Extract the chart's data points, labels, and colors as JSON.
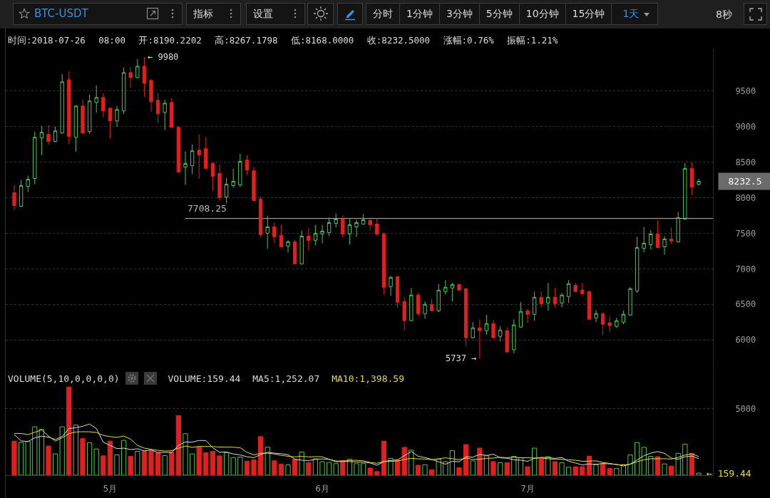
{
  "chart_data": [
    {
      "type": "candlestick",
      "title": "BTC-USDT",
      "subtitle": "时间:2018-07-26 08:00 开:8190.2202 高:8267.1798 低:8168.0000 收:8232.5000 涨幅:0.76% 振幅:1.21%",
      "x": [
        "2018-04-17",
        "2018-04-18",
        "2018-04-19",
        "2018-04-20",
        "2018-04-21",
        "2018-04-22",
        "2018-04-23",
        "2018-04-24",
        "2018-04-25",
        "2018-04-26",
        "2018-04-27",
        "2018-04-28",
        "2018-04-29",
        "2018-04-30",
        "2018-05-01",
        "2018-05-02",
        "2018-05-03",
        "2018-05-04",
        "2018-05-05",
        "2018-05-06",
        "2018-05-07",
        "2018-05-08",
        "2018-05-09",
        "2018-05-10",
        "2018-05-11",
        "2018-05-12",
        "2018-05-13",
        "2018-05-14",
        "2018-05-15",
        "2018-05-16",
        "2018-05-17",
        "2018-05-18",
        "2018-05-19",
        "2018-05-20",
        "2018-05-21",
        "2018-05-22",
        "2018-05-23",
        "2018-05-24",
        "2018-05-25",
        "2018-05-26",
        "2018-05-27",
        "2018-05-28",
        "2018-05-29",
        "2018-05-30",
        "2018-05-31",
        "2018-06-01",
        "2018-06-02",
        "2018-06-03",
        "2018-06-04",
        "2018-06-05",
        "2018-06-06",
        "2018-06-07",
        "2018-06-08",
        "2018-06-09",
        "2018-06-10",
        "2018-06-11",
        "2018-06-12",
        "2018-06-13",
        "2018-06-14",
        "2018-06-15",
        "2018-06-16",
        "2018-06-17",
        "2018-06-18",
        "2018-06-19",
        "2018-06-20",
        "2018-06-21",
        "2018-06-22",
        "2018-06-23",
        "2018-06-24",
        "2018-06-25",
        "2018-06-26",
        "2018-06-27",
        "2018-06-28",
        "2018-06-29",
        "2018-06-30",
        "2018-07-01",
        "2018-07-02",
        "2018-07-03",
        "2018-07-04",
        "2018-07-05",
        "2018-07-06",
        "2018-07-07",
        "2018-07-08",
        "2018-07-09",
        "2018-07-10",
        "2018-07-11",
        "2018-07-12",
        "2018-07-13",
        "2018-07-14",
        "2018-07-15",
        "2018-07-16",
        "2018-07-17",
        "2018-07-18",
        "2018-07-19",
        "2018-07-20",
        "2018-07-21",
        "2018-07-22",
        "2018-07-23",
        "2018-07-24",
        "2018-07-25",
        "2018-07-26"
      ],
      "ohlc": [
        [
          8070,
          8180,
          7830,
          7890
        ],
        [
          7880,
          8250,
          7870,
          8170
        ],
        [
          8160,
          8310,
          8080,
          8260
        ],
        [
          8270,
          8930,
          8190,
          8850
        ],
        [
          8840,
          9010,
          8600,
          8920
        ],
        [
          8890,
          9020,
          8750,
          8790
        ],
        [
          8790,
          9000,
          8780,
          8940
        ],
        [
          8910,
          9740,
          8900,
          9630
        ],
        [
          9660,
          9780,
          8750,
          8860
        ],
        [
          8850,
          9300,
          8650,
          9290
        ],
        [
          9290,
          9380,
          8900,
          8910
        ],
        [
          8930,
          9450,
          8900,
          9360
        ],
        [
          9340,
          9580,
          9200,
          9410
        ],
        [
          9410,
          9470,
          9130,
          9220
        ],
        [
          9260,
          9270,
          8830,
          9080
        ],
        [
          9080,
          9290,
          9000,
          9240
        ],
        [
          9220,
          9830,
          9180,
          9760
        ],
        [
          9760,
          9830,
          9550,
          9690
        ],
        [
          9690,
          9950,
          9680,
          9850
        ],
        [
          9850,
          9980,
          9420,
          9610
        ],
        [
          9650,
          9670,
          9210,
          9350
        ],
        [
          9370,
          9470,
          9050,
          9180
        ],
        [
          9200,
          9380,
          8950,
          9330
        ],
        [
          9340,
          9400,
          8980,
          8990
        ],
        [
          8990,
          9000,
          8350,
          8360
        ],
        [
          8430,
          8650,
          8180,
          8480
        ],
        [
          8450,
          8750,
          8330,
          8660
        ],
        [
          8670,
          8890,
          8270,
          8600
        ],
        [
          8690,
          8850,
          8400,
          8410
        ],
        [
          8480,
          8500,
          8100,
          8300
        ],
        [
          8340,
          8470,
          7960,
          8000
        ],
        [
          8010,
          8280,
          7920,
          8190
        ],
        [
          8170,
          8410,
          8140,
          8230
        ],
        [
          8180,
          8620,
          8150,
          8510
        ],
        [
          8530,
          8600,
          8320,
          8390
        ],
        [
          8380,
          8430,
          7950,
          7960
        ],
        [
          7980,
          8020,
          7440,
          7480
        ],
        [
          7500,
          7750,
          7280,
          7590
        ],
        [
          7590,
          7650,
          7360,
          7450
        ],
        [
          7470,
          7620,
          7300,
          7310
        ],
        [
          7320,
          7400,
          7230,
          7380
        ],
        [
          7380,
          7410,
          7060,
          7070
        ],
        [
          7070,
          7540,
          7060,
          7460
        ],
        [
          7460,
          7570,
          7260,
          7400
        ],
        [
          7400,
          7620,
          7330,
          7500
        ],
        [
          7490,
          7620,
          7360,
          7530
        ],
        [
          7510,
          7720,
          7460,
          7650
        ],
        [
          7640,
          7780,
          7580,
          7700
        ],
        [
          7700,
          7750,
          7440,
          7490
        ],
        [
          7490,
          7700,
          7340,
          7620
        ],
        [
          7590,
          7690,
          7450,
          7650
        ],
        [
          7630,
          7770,
          7620,
          7690
        ],
        [
          7680,
          7700,
          7540,
          7620
        ],
        [
          7630,
          7710,
          7460,
          7490
        ],
        [
          7490,
          7510,
          6640,
          6740
        ],
        [
          6750,
          6900,
          6620,
          6880
        ],
        [
          6890,
          6900,
          6450,
          6530
        ],
        [
          6540,
          6600,
          6130,
          6270
        ],
        [
          6270,
          6730,
          6260,
          6630
        ],
        [
          6630,
          6660,
          6340,
          6370
        ],
        [
          6370,
          6540,
          6300,
          6500
        ],
        [
          6500,
          6580,
          6400,
          6410
        ],
        [
          6410,
          6790,
          6390,
          6700
        ],
        [
          6680,
          6840,
          6640,
          6740
        ],
        [
          6730,
          6800,
          6540,
          6780
        ],
        [
          6780,
          6790,
          6690,
          6700
        ],
        [
          6720,
          6730,
          5910,
          6030
        ],
        [
          6030,
          6250,
          6020,
          6170
        ],
        [
          6170,
          6290,
          5737,
          6130
        ],
        [
          6130,
          6350,
          6070,
          6230
        ],
        [
          6230,
          6280,
          6020,
          6030
        ],
        [
          6050,
          6190,
          5980,
          6140
        ],
        [
          6130,
          6180,
          5820,
          5830
        ],
        [
          5860,
          6290,
          5810,
          6210
        ],
        [
          6180,
          6530,
          6170,
          6400
        ],
        [
          6410,
          6440,
          6240,
          6360
        ],
        [
          6360,
          6680,
          6270,
          6600
        ],
        [
          6600,
          6680,
          6460,
          6510
        ],
        [
          6520,
          6800,
          6410,
          6600
        ],
        [
          6600,
          6730,
          6460,
          6510
        ],
        [
          6520,
          6660,
          6460,
          6630
        ],
        [
          6610,
          6840,
          6520,
          6790
        ],
        [
          6770,
          6800,
          6670,
          6680
        ],
        [
          6700,
          6800,
          6630,
          6650
        ],
        [
          6680,
          6690,
          6280,
          6290
        ],
        [
          6310,
          6420,
          6250,
          6370
        ],
        [
          6370,
          6380,
          6070,
          6220
        ],
        [
          6240,
          6330,
          6110,
          6200
        ],
        [
          6190,
          6310,
          6170,
          6270
        ],
        [
          6250,
          6410,
          6220,
          6360
        ],
        [
          6350,
          6740,
          6340,
          6720
        ],
        [
          6690,
          7450,
          6660,
          7300
        ],
        [
          7290,
          7590,
          7230,
          7360
        ],
        [
          7340,
          7540,
          7270,
          7490
        ],
        [
          7490,
          7680,
          7290,
          7300
        ],
        [
          7310,
          7460,
          7200,
          7420
        ],
        [
          7420,
          7580,
          7350,
          7390
        ],
        [
          7380,
          7800,
          7370,
          7720
        ],
        [
          7700,
          8490,
          7690,
          8410
        ],
        [
          8410,
          8500,
          8040,
          8150
        ],
        [
          8190.2202,
          8267.1798,
          8168,
          8232.5
        ]
      ],
      "colors": [
        "#e0201e",
        "#4cc552",
        "#4cc552",
        "#4cc552",
        "#4cc552",
        "#e0201e",
        "#4cc552",
        "#4cc552",
        "#e0201e",
        "#4cc552",
        "#e0201e",
        "#4cc552",
        "#4cc552",
        "#e0201e",
        "#e0201e",
        "#4cc552",
        "#4cc552",
        "#e0201e",
        "#4cc552",
        "#e0201e",
        "#e0201e",
        "#e0201e",
        "#4cc552",
        "#e0201e",
        "#e0201e",
        "#4cc552",
        "#4cc552",
        "#e0201e",
        "#e0201e",
        "#e0201e",
        "#e0201e",
        "#4cc552",
        "#4cc552",
        "#4cc552",
        "#e0201e",
        "#e0201e",
        "#e0201e",
        "#4cc552",
        "#e0201e",
        "#e0201e",
        "#4cc552",
        "#e0201e",
        "#4cc552",
        "#e0201e",
        "#4cc552",
        "#4cc552",
        "#4cc552",
        "#4cc552",
        "#e0201e",
        "#4cc552",
        "#4cc552",
        "#4cc552",
        "#e0201e",
        "#e0201e",
        "#e0201e",
        "#4cc552",
        "#e0201e",
        "#e0201e",
        "#4cc552",
        "#e0201e",
        "#4cc552",
        "#e0201e",
        "#4cc552",
        "#4cc552",
        "#4cc552",
        "#e0201e",
        "#e0201e",
        "#4cc552",
        "#e0201e",
        "#4cc552",
        "#e0201e",
        "#4cc552",
        "#e0201e",
        "#4cc552",
        "#4cc552",
        "#e0201e",
        "#4cc552",
        "#e0201e",
        "#4cc552",
        "#e0201e",
        "#4cc552",
        "#4cc552",
        "#e0201e",
        "#e0201e",
        "#e0201e",
        "#4cc552",
        "#e0201e",
        "#e0201e",
        "#4cc552",
        "#4cc552",
        "#4cc552",
        "#4cc552",
        "#4cc552",
        "#4cc552",
        "#e0201e",
        "#4cc552",
        "#e0201e",
        "#4cc552",
        "#4cc552",
        "#e0201e",
        "#4cc552"
      ],
      "series": [
        {
          "name": "7708.25",
          "type": "line",
          "color": "#b9b9b9",
          "x": [
            "2018-05-12",
            "2018-07-28T02:00"
          ],
          "values": [
            7708.25,
            7708.25
          ]
        }
      ],
      "xlim": [
        "2018-04-15T18:00",
        "2018-07-28T02:00"
      ],
      "ylim": [
        5600,
        10100
      ],
      "yticks": [
        6000,
        6500,
        7000,
        7500,
        8000,
        8500,
        9000,
        9500
      ],
      "grid": "y",
      "tick_labels": "y",
      "annotations": [
        "指标",
        "设置",
        "分时",
        "1分钟",
        "3分钟",
        "5分钟",
        "10分钟",
        "15分钟",
        "1天",
        "8秒",
        "8232.5",
        {
          "text": "← 9980",
          "x": "2018-05-06",
          "y": 9980
        },
        {
          "text": "5737 →",
          "x": "2018-06-24",
          "y": 5737
        }
      ]
    },
    {
      "type": "bar",
      "title": "VOLUME(5,10,0,0,0,0)",
      "x": [
        "2018-04-17",
        "2018-04-18",
        "2018-04-19",
        "2018-04-20",
        "2018-04-21",
        "2018-04-22",
        "2018-04-23",
        "2018-04-24",
        "2018-04-25",
        "2018-04-26",
        "2018-04-27",
        "2018-04-28",
        "2018-04-29",
        "2018-04-30",
        "2018-05-01",
        "2018-05-02",
        "2018-05-03",
        "2018-05-04",
        "2018-05-05",
        "2018-05-06",
        "2018-05-07",
        "2018-05-08",
        "2018-05-09",
        "2018-05-10",
        "2018-05-11",
        "2018-05-12",
        "2018-05-13",
        "2018-05-14",
        "2018-05-15",
        "2018-05-16",
        "2018-05-17",
        "2018-05-18",
        "2018-05-19",
        "2018-05-20",
        "2018-05-21",
        "2018-05-22",
        "2018-05-23",
        "2018-05-24",
        "2018-05-25",
        "2018-05-26",
        "2018-05-27",
        "2018-05-28",
        "2018-05-29",
        "2018-05-30",
        "2018-05-31",
        "2018-06-01",
        "2018-06-02",
        "2018-06-03",
        "2018-06-04",
        "2018-06-05",
        "2018-06-06",
        "2018-06-07",
        "2018-06-08",
        "2018-06-09",
        "2018-06-10",
        "2018-06-11",
        "2018-06-12",
        "2018-06-13",
        "2018-06-14",
        "2018-06-15",
        "2018-06-16",
        "2018-06-17",
        "2018-06-18",
        "2018-06-19",
        "2018-06-20",
        "2018-06-21",
        "2018-06-22",
        "2018-06-23",
        "2018-06-24",
        "2018-06-25",
        "2018-06-26",
        "2018-06-27",
        "2018-06-28",
        "2018-06-29",
        "2018-06-30",
        "2018-07-01",
        "2018-07-02",
        "2018-07-03",
        "2018-07-04",
        "2018-07-05",
        "2018-07-06",
        "2018-07-07",
        "2018-07-08",
        "2018-07-09",
        "2018-07-10",
        "2018-07-11",
        "2018-07-12",
        "2018-07-13",
        "2018-07-14",
        "2018-07-15",
        "2018-07-16",
        "2018-07-17",
        "2018-07-18",
        "2018-07-19",
        "2018-07-20",
        "2018-07-21",
        "2018-07-22",
        "2018-07-23",
        "2018-07-24",
        "2018-07-25",
        "2018-07-26"
      ],
      "series": [
        {
          "colors": [
            "#e0201e",
            "#4cc552",
            "#4cc552",
            "#4cc552",
            "#4cc552",
            "#e0201e",
            "#4cc552",
            "#4cc552",
            "#e0201e",
            "#4cc552",
            "#e0201e",
            "#4cc552",
            "#4cc552",
            "#e0201e",
            "#e0201e",
            "#4cc552",
            "#4cc552",
            "#e0201e",
            "#4cc552",
            "#e0201e",
            "#e0201e",
            "#e0201e",
            "#4cc552",
            "#e0201e",
            "#e0201e",
            "#4cc552",
            "#4cc552",
            "#e0201e",
            "#e0201e",
            "#e0201e",
            "#e0201e",
            "#4cc552",
            "#4cc552",
            "#4cc552",
            "#e0201e",
            "#e0201e",
            "#e0201e",
            "#4cc552",
            "#e0201e",
            "#e0201e",
            "#4cc552",
            "#e0201e",
            "#4cc552",
            "#e0201e",
            "#4cc552",
            "#4cc552",
            "#4cc552",
            "#4cc552",
            "#e0201e",
            "#4cc552",
            "#4cc552",
            "#4cc552",
            "#e0201e",
            "#e0201e",
            "#e0201e",
            "#4cc552",
            "#e0201e",
            "#e0201e",
            "#4cc552",
            "#e0201e",
            "#4cc552",
            "#e0201e",
            "#4cc552",
            "#4cc552",
            "#4cc552",
            "#e0201e",
            "#e0201e",
            "#4cc552",
            "#e0201e",
            "#4cc552",
            "#e0201e",
            "#4cc552",
            "#e0201e",
            "#4cc552",
            "#4cc552",
            "#e0201e",
            "#4cc552",
            "#e0201e",
            "#4cc552",
            "#e0201e",
            "#4cc552",
            "#4cc552",
            "#e0201e",
            "#e0201e",
            "#e0201e",
            "#4cc552",
            "#e0201e",
            "#e0201e",
            "#4cc552",
            "#4cc552",
            "#4cc552",
            "#4cc552",
            "#4cc552",
            "#4cc552",
            "#e0201e",
            "#4cc552",
            "#e0201e",
            "#4cc552",
            "#4cc552",
            "#e0201e",
            "#4cc552"
          ],
          "values": [
            2570,
            2480,
            2540,
            3650,
            3460,
            2200,
            1610,
            3650,
            6650,
            3780,
            2760,
            2450,
            1980,
            1460,
            2570,
            1540,
            2630,
            1430,
            1800,
            1800,
            1830,
            1690,
            1480,
            1740,
            4500,
            3130,
            1610,
            2110,
            1690,
            1800,
            1460,
            1700,
            1330,
            1370,
            1060,
            1150,
            2910,
            2110,
            1090,
            830,
            780,
            1200,
            1740,
            960,
            1240,
            1020,
            960,
            870,
            1090,
            1200,
            870,
            870,
            540,
            280,
            2570,
            1270,
            1140,
            2100,
            1890,
            750,
            790,
            400,
            1210,
            1020,
            1850,
            560,
            2310,
            1080,
            2040,
            1460,
            1020,
            940,
            940,
            1420,
            1310,
            640,
            2040,
            1270,
            1400,
            1020,
            940,
            600,
            640,
            640,
            1440,
            790,
            890,
            500,
            500,
            790,
            1520,
            2460,
            2100,
            1420,
            1400,
            850,
            690,
            1650,
            2330,
            1650,
            159.44
          ]
        },
        {
          "name": "MA5:1,252.07",
          "type": "line",
          "color": "#d8d8d8",
          "values": [
            3060,
            2590,
            2540,
            2820,
            2940,
            2870,
            2690,
            2910,
            3520,
            3580,
            3690,
            3860,
            3520,
            2490,
            2250,
            2000,
            2040,
            1930,
            1990,
            1840,
            1900,
            1710,
            1720,
            1710,
            2250,
            2510,
            2490,
            2620,
            2610,
            2070,
            1730,
            1750,
            1600,
            1530,
            1390,
            1320,
            1560,
            1720,
            1660,
            1620,
            1550,
            1200,
            1130,
            1100,
            1190,
            1230,
            1190,
            1010,
            1040,
            1030,
            1000,
            980,
            920,
            750,
            1030,
            1110,
            1160,
            1470,
            1790,
            1430,
            1330,
            1190,
            1010,
            830,
            1050,
            1010,
            1390,
            1360,
            1570,
            1490,
            1580,
            1310,
            1280,
            1160,
            1130,
            1050,
            1270,
            1340,
            1330,
            1270,
            1330,
            1050,
            920,
            770,
            850,
            820,
            880,
            850,
            820,
            690,
            840,
            1150,
            1470,
            1660,
            1780,
            1650,
            1290,
            1200,
            1390,
            1440,
            1252.07
          ]
        },
        {
          "name": "MA10:1,398.59",
          "type": "line",
          "color": "#e6d84a",
          "values": [
            3150,
            3150,
            3060,
            3240,
            3410,
            2950,
            2570,
            2820,
            3130,
            3260,
            3280,
            3270,
            3220,
            3000,
            2910,
            2850,
            2950,
            2720,
            2240,
            2040,
            1950,
            1870,
            1820,
            1850,
            2040,
            2200,
            2100,
            2170,
            2160,
            2160,
            2120,
            2120,
            2110,
            2070,
            1730,
            1530,
            1660,
            1660,
            1600,
            1500,
            1430,
            1380,
            1420,
            1380,
            1400,
            1390,
            1200,
            1070,
            1070,
            1110,
            1120,
            1080,
            960,
            900,
            1030,
            1050,
            1070,
            1190,
            1270,
            1230,
            1220,
            1170,
            1240,
            1310,
            1240,
            1170,
            1290,
            1190,
            1200,
            1270,
            1290,
            1350,
            1320,
            1360,
            1310,
            1320,
            1290,
            1310,
            1240,
            1200,
            1190,
            1160,
            1130,
            1050,
            1060,
            1080,
            960,
            890,
            790,
            770,
            830,
            1020,
            1160,
            1240,
            1240,
            1240,
            1220,
            1340,
            1520,
            1610,
            1398.59
          ]
        }
      ],
      "xlim": [
        "2018-04-15T18:00",
        "2018-07-28T02:00"
      ],
      "xticks": [
        {
          "value": "2018-05-01",
          "label": "5月"
        },
        {
          "value": "2018-06-01",
          "label": "6月"
        },
        {
          "value": "2018-07-01",
          "label": "7月"
        }
      ],
      "ylim": [
        0,
        7950
      ],
      "yticks": [
        5000
      ],
      "grid": "y",
      "annotations": [
        "VOLUME:159.44",
        {
          "text": "← 159.44",
          "x": "2018-07-26",
          "y": 159.44
        }
      ]
    }
  ]
}
